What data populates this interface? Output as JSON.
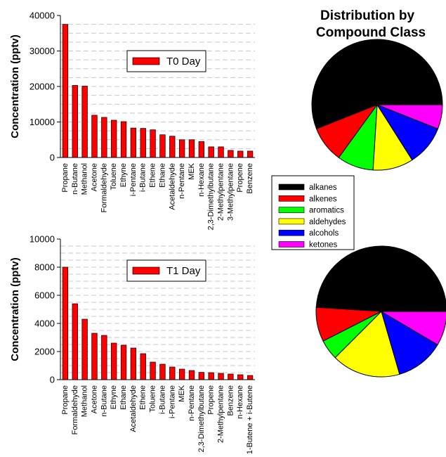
{
  "pie_title": [
    "Distribution by",
    "Compound Class"
  ],
  "chart_data": [
    {
      "type": "bar",
      "title": "",
      "ylabel": "Concentration (pptv)",
      "ylim": [
        0,
        40000
      ],
      "yticks": [
        0,
        10000,
        20000,
        30000,
        40000
      ],
      "grid": true,
      "bar_color": "#ff0000",
      "series": [
        {
          "name": "T0 Day"
        }
      ],
      "categories": [
        "Propane",
        "n-Butane",
        "Methanol",
        "Acetone",
        "Formaldehyde",
        "Toluene",
        "Ethyne",
        "i-Pentane",
        "i-Butane",
        "Ethene",
        "Ethane",
        "Acetaldehyde",
        "n-Pentane",
        "MEK",
        "n-Hexane",
        "2,3-Dimethylbutane",
        "2-Methylpentane",
        "3-Methylpentane",
        "Propene",
        "Benzene"
      ],
      "values": [
        37500,
        20300,
        20100,
        11900,
        11300,
        10500,
        10100,
        8300,
        8200,
        7800,
        6400,
        6000,
        5000,
        5000,
        4500,
        3000,
        3000,
        2000,
        1800,
        1800
      ]
    },
    {
      "type": "bar",
      "title": "",
      "ylabel": "Concentration (pptv)",
      "ylim": [
        0,
        10000
      ],
      "yticks": [
        0,
        2000,
        4000,
        6000,
        8000,
        10000
      ],
      "grid": true,
      "bar_color": "#ff0000",
      "series": [
        {
          "name": "T1 Day"
        }
      ],
      "categories": [
        "Propane",
        "Formaldehyde",
        "Methanol",
        "Acetone",
        "n-Butane",
        "Ethyne",
        "Ethane",
        "Acetaldehyde",
        "Ethene",
        "Toluene",
        "i-Butane",
        "i-Pentane",
        "MEK",
        "n-Pentane",
        "2,3-Dimethylbutane",
        "Propene",
        "2-Methylpentane",
        "Benzene",
        "n-Hexane",
        "1-Butene + i-Butene"
      ],
      "values": [
        8000,
        5400,
        4300,
        3300,
        3150,
        2600,
        2450,
        2250,
        1850,
        1250,
        1100,
        900,
        750,
        650,
        520,
        500,
        450,
        400,
        350,
        300
      ]
    },
    {
      "type": "pie",
      "title": "Distribution by Compound Class",
      "labels": [
        "alkanes",
        "alkenes",
        "aromatics",
        "aldehydes",
        "alcohols",
        "ketones"
      ],
      "values": [
        56,
        9,
        9,
        10,
        10,
        6
      ],
      "colors": [
        "#000000",
        "#ff0000",
        "#00ff00",
        "#ffff00",
        "#0000ff",
        "#ff00ff"
      ],
      "legend": "between-pies"
    },
    {
      "type": "pie",
      "title": "",
      "labels": [
        "alkanes",
        "alkenes",
        "aromatics",
        "aldehydes",
        "alcohols",
        "ketones"
      ],
      "values": [
        49,
        8.5,
        5,
        17,
        12,
        8.5
      ],
      "colors": [
        "#000000",
        "#ff0000",
        "#00ff00",
        "#ffff00",
        "#0000ff",
        "#ff00ff"
      ]
    }
  ]
}
